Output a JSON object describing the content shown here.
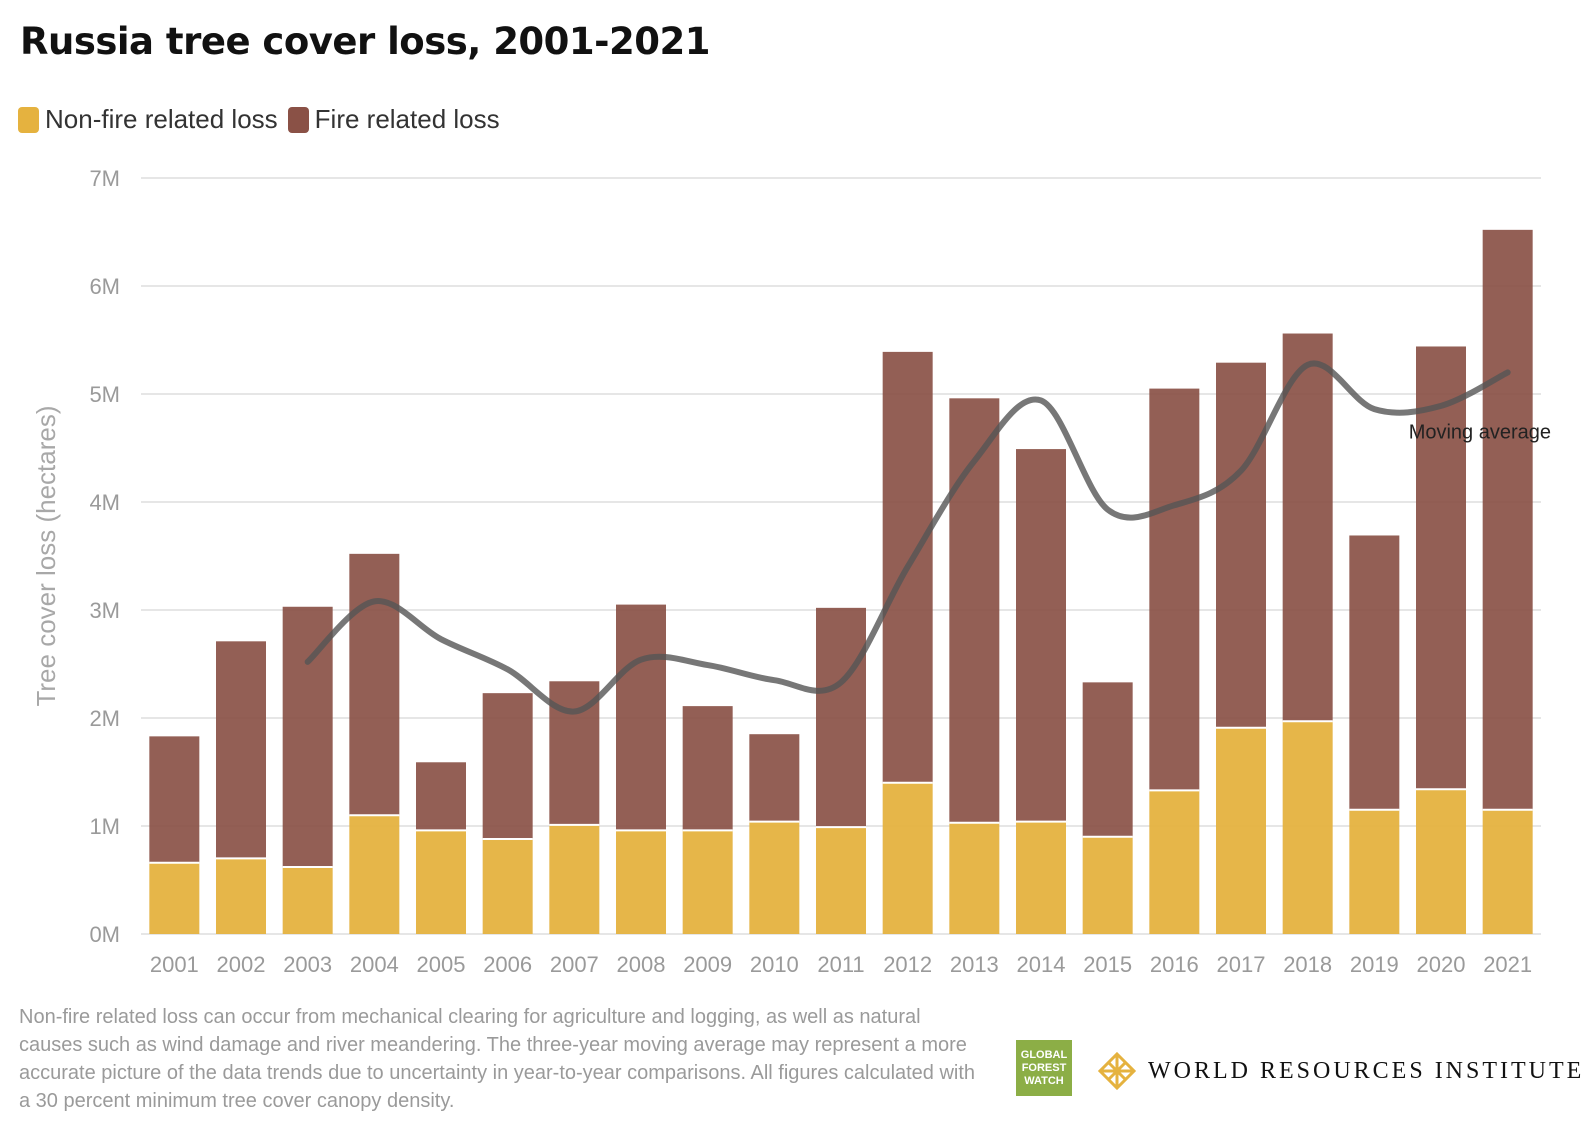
{
  "title": "Russia tree cover loss, 2001-2021",
  "legend": [
    {
      "label": "Non-fire related loss",
      "color": "#e5b23f"
    },
    {
      "label": "Fire related loss",
      "color": "#8a5146"
    }
  ],
  "chart_data": {
    "type": "bar",
    "stacked": true,
    "title": "Russia tree cover loss, 2001-2021",
    "xlabel": "",
    "ylabel": "Tree cover loss (hectares)",
    "ylim": [
      0,
      7000000
    ],
    "yticks": [
      "0M",
      "1M",
      "2M",
      "3M",
      "4M",
      "5M",
      "6M",
      "7M"
    ],
    "grid": true,
    "legend_position": "top-left",
    "categories": [
      "2001",
      "2002",
      "2003",
      "2004",
      "2005",
      "2006",
      "2007",
      "2008",
      "2009",
      "2010",
      "2011",
      "2012",
      "2013",
      "2014",
      "2015",
      "2016",
      "2017",
      "2018",
      "2019",
      "2020",
      "2021"
    ],
    "series": [
      {
        "name": "Non-fire related loss",
        "color": "#e5b23f",
        "values": [
          660000,
          700000,
          620000,
          1100000,
          960000,
          880000,
          1010000,
          960000,
          960000,
          1040000,
          990000,
          1400000,
          1030000,
          1040000,
          900000,
          1330000,
          1910000,
          1970000,
          1150000,
          1340000,
          1150000
        ]
      },
      {
        "name": "Fire related loss",
        "color": "#8a5146",
        "values": [
          1170000,
          2010000,
          2410000,
          2420000,
          630000,
          1350000,
          1330000,
          2090000,
          1150000,
          810000,
          2030000,
          3990000,
          3930000,
          3450000,
          1430000,
          3720000,
          3380000,
          3590000,
          2540000,
          4100000,
          5370000
        ]
      }
    ],
    "moving_average": {
      "label": "Moving average",
      "color": "#555555",
      "x": [
        "2003",
        "2004",
        "2005",
        "2006",
        "2007",
        "2008",
        "2009",
        "2010",
        "2011",
        "2012",
        "2013",
        "2014",
        "2015",
        "2016",
        "2017",
        "2018",
        "2019",
        "2020",
        "2021"
      ],
      "values": [
        2520000,
        3080000,
        2730000,
        2450000,
        2060000,
        2540000,
        2490000,
        2350000,
        2330000,
        3400000,
        4380000,
        4940000,
        3930000,
        3970000,
        4290000,
        5270000,
        4860000,
        4890000,
        5200000
      ]
    }
  },
  "footnote": "Non-fire related loss can occur from mechanical clearing for agriculture and logging, as well as natural causes such as wind damage and river meandering. The three-year moving average may represent a more accurate picture of the data trends due to uncertainty in year-to-year comparisons. All figures calculated with a 30 percent minimum tree cover canopy density.",
  "logos": {
    "gfw": [
      "GLOBAL",
      "FOREST",
      "WATCH"
    ],
    "wri": "WORLD RESOURCES INSTITUTE",
    "wri_icon": "diamond-lattice-icon"
  }
}
